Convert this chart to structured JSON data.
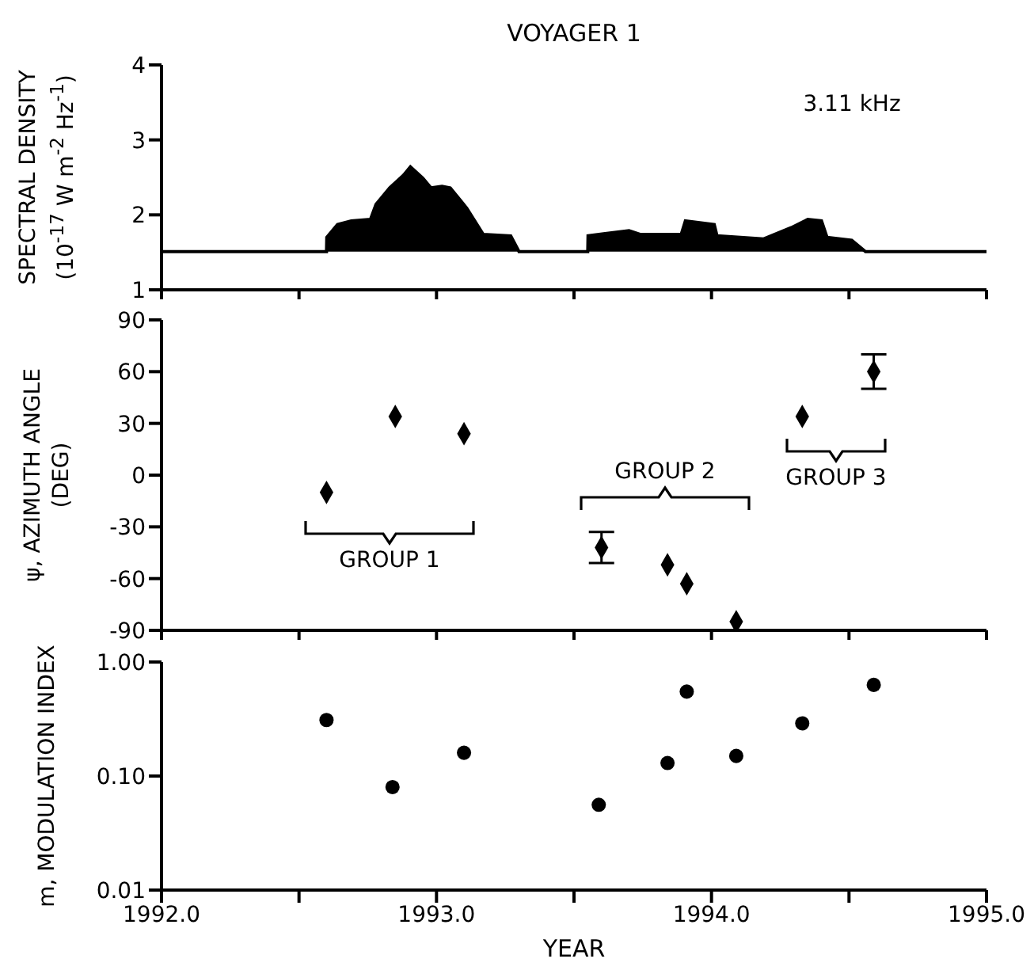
{
  "chart_data": [
    {
      "type": "area",
      "title": "VOYAGER 1",
      "ylabel": "SPECTRAL DENSITY\n(10$^{-17}$ W m$^{-2}$ Hz$^{-1}$)",
      "color": "#000000",
      "annotations": [
        "3.11 kHz"
      ],
      "x": [
        1992.0,
        1992.6,
        1992.601,
        1992.64,
        1992.69,
        1992.76,
        1992.78,
        1992.83,
        1992.88,
        1992.905,
        1992.95,
        1992.98,
        1993.02,
        1993.05,
        1993.11,
        1993.17,
        1993.27,
        1993.3,
        1993.55,
        1993.551,
        1993.7,
        1993.74,
        1993.89,
        1993.905,
        1994.01,
        1994.02,
        1994.19,
        1994.29,
        1994.35,
        1994.4,
        1994.42,
        1994.51,
        1994.56,
        1995.0
      ],
      "values": [
        1.51,
        1.51,
        1.7,
        1.87,
        1.92,
        1.94,
        2.14,
        2.36,
        2.53,
        2.64,
        2.49,
        2.36,
        2.38,
        2.36,
        2.09,
        1.74,
        1.72,
        1.51,
        1.51,
        1.72,
        1.79,
        1.74,
        1.74,
        1.92,
        1.87,
        1.72,
        1.68,
        1.83,
        1.94,
        1.92,
        1.7,
        1.66,
        1.51,
        1.51
      ],
      "xlim": [
        1992,
        1995
      ],
      "xticks": [
        {
          "value": 1992,
          "label": null
        },
        {
          "value": 1992.5,
          "label": null
        },
        {
          "value": 1993,
          "label": null
        },
        {
          "value": 1993.5,
          "label": null
        },
        {
          "value": 1994,
          "label": null
        },
        {
          "value": 1994.5,
          "label": null
        },
        {
          "value": 1995,
          "label": null
        }
      ],
      "ylim": [
        1,
        4
      ],
      "yticks": [
        1,
        2,
        3,
        4
      ],
      "tick_labels": "y"
    },
    {
      "type": "scatter",
      "ylabel": "ψ, AZIMUTH ANGLE\n(DEG)",
      "color": "#000000",
      "marker": "diamond",
      "x": [
        1992.6,
        1992.85,
        1993.1,
        1993.6,
        1993.84,
        1993.91,
        1994.09,
        1994.33,
        1994.59
      ],
      "values": [
        -10,
        34,
        24,
        -42,
        -52,
        -63,
        -85,
        34,
        60
      ],
      "errors": [
        null,
        null,
        null,
        9,
        null,
        null,
        null,
        null,
        10
      ],
      "annotations": [
        "GROUP 1",
        "GROUP 2",
        "GROUP 3"
      ],
      "xlim": [
        1992,
        1995
      ],
      "xticks": [
        {
          "value": 1992,
          "label": null
        },
        {
          "value": 1992.5,
          "label": null
        },
        {
          "value": 1993,
          "label": null
        },
        {
          "value": 1993.5,
          "label": null
        },
        {
          "value": 1994,
          "label": null
        },
        {
          "value": 1994.5,
          "label": null
        },
        {
          "value": 1995,
          "label": null
        }
      ],
      "ylim": [
        -90,
        90
      ],
      "yticks": [
        -90,
        -60,
        -30,
        0,
        30,
        60,
        90
      ],
      "tick_labels": "y"
    },
    {
      "type": "scatter",
      "ylabel": "m, MODULATION INDEX",
      "xlabel": "YEAR",
      "color": "#000000",
      "marker": "circle",
      "log": true,
      "x": [
        1992.6,
        1992.84,
        1993.1,
        1993.59,
        1993.84,
        1993.91,
        1994.09,
        1994.33,
        1994.59
      ],
      "values": [
        0.31,
        0.08,
        0.16,
        0.056,
        0.13,
        0.55,
        0.15,
        0.29,
        0.63
      ],
      "xlim": [
        1992,
        1995
      ],
      "xticks": [
        {
          "value": 1992,
          "label": "1992.0"
        },
        {
          "value": 1992.5,
          "label": null
        },
        {
          "value": 1993,
          "label": "1993.0"
        },
        {
          "value": 1993.5,
          "label": null
        },
        {
          "value": 1994,
          "label": "1994.0"
        },
        {
          "value": 1994.5,
          "label": null
        },
        {
          "value": 1995,
          "label": "1995.0"
        }
      ],
      "ylim": [
        0.01,
        1
      ],
      "yticks": [
        {
          "value": 0.01,
          "label": "0.01"
        },
        {
          "value": 0.1,
          "label": "0.10"
        },
        {
          "value": 1,
          "label": "1.00"
        }
      ]
    }
  ]
}
